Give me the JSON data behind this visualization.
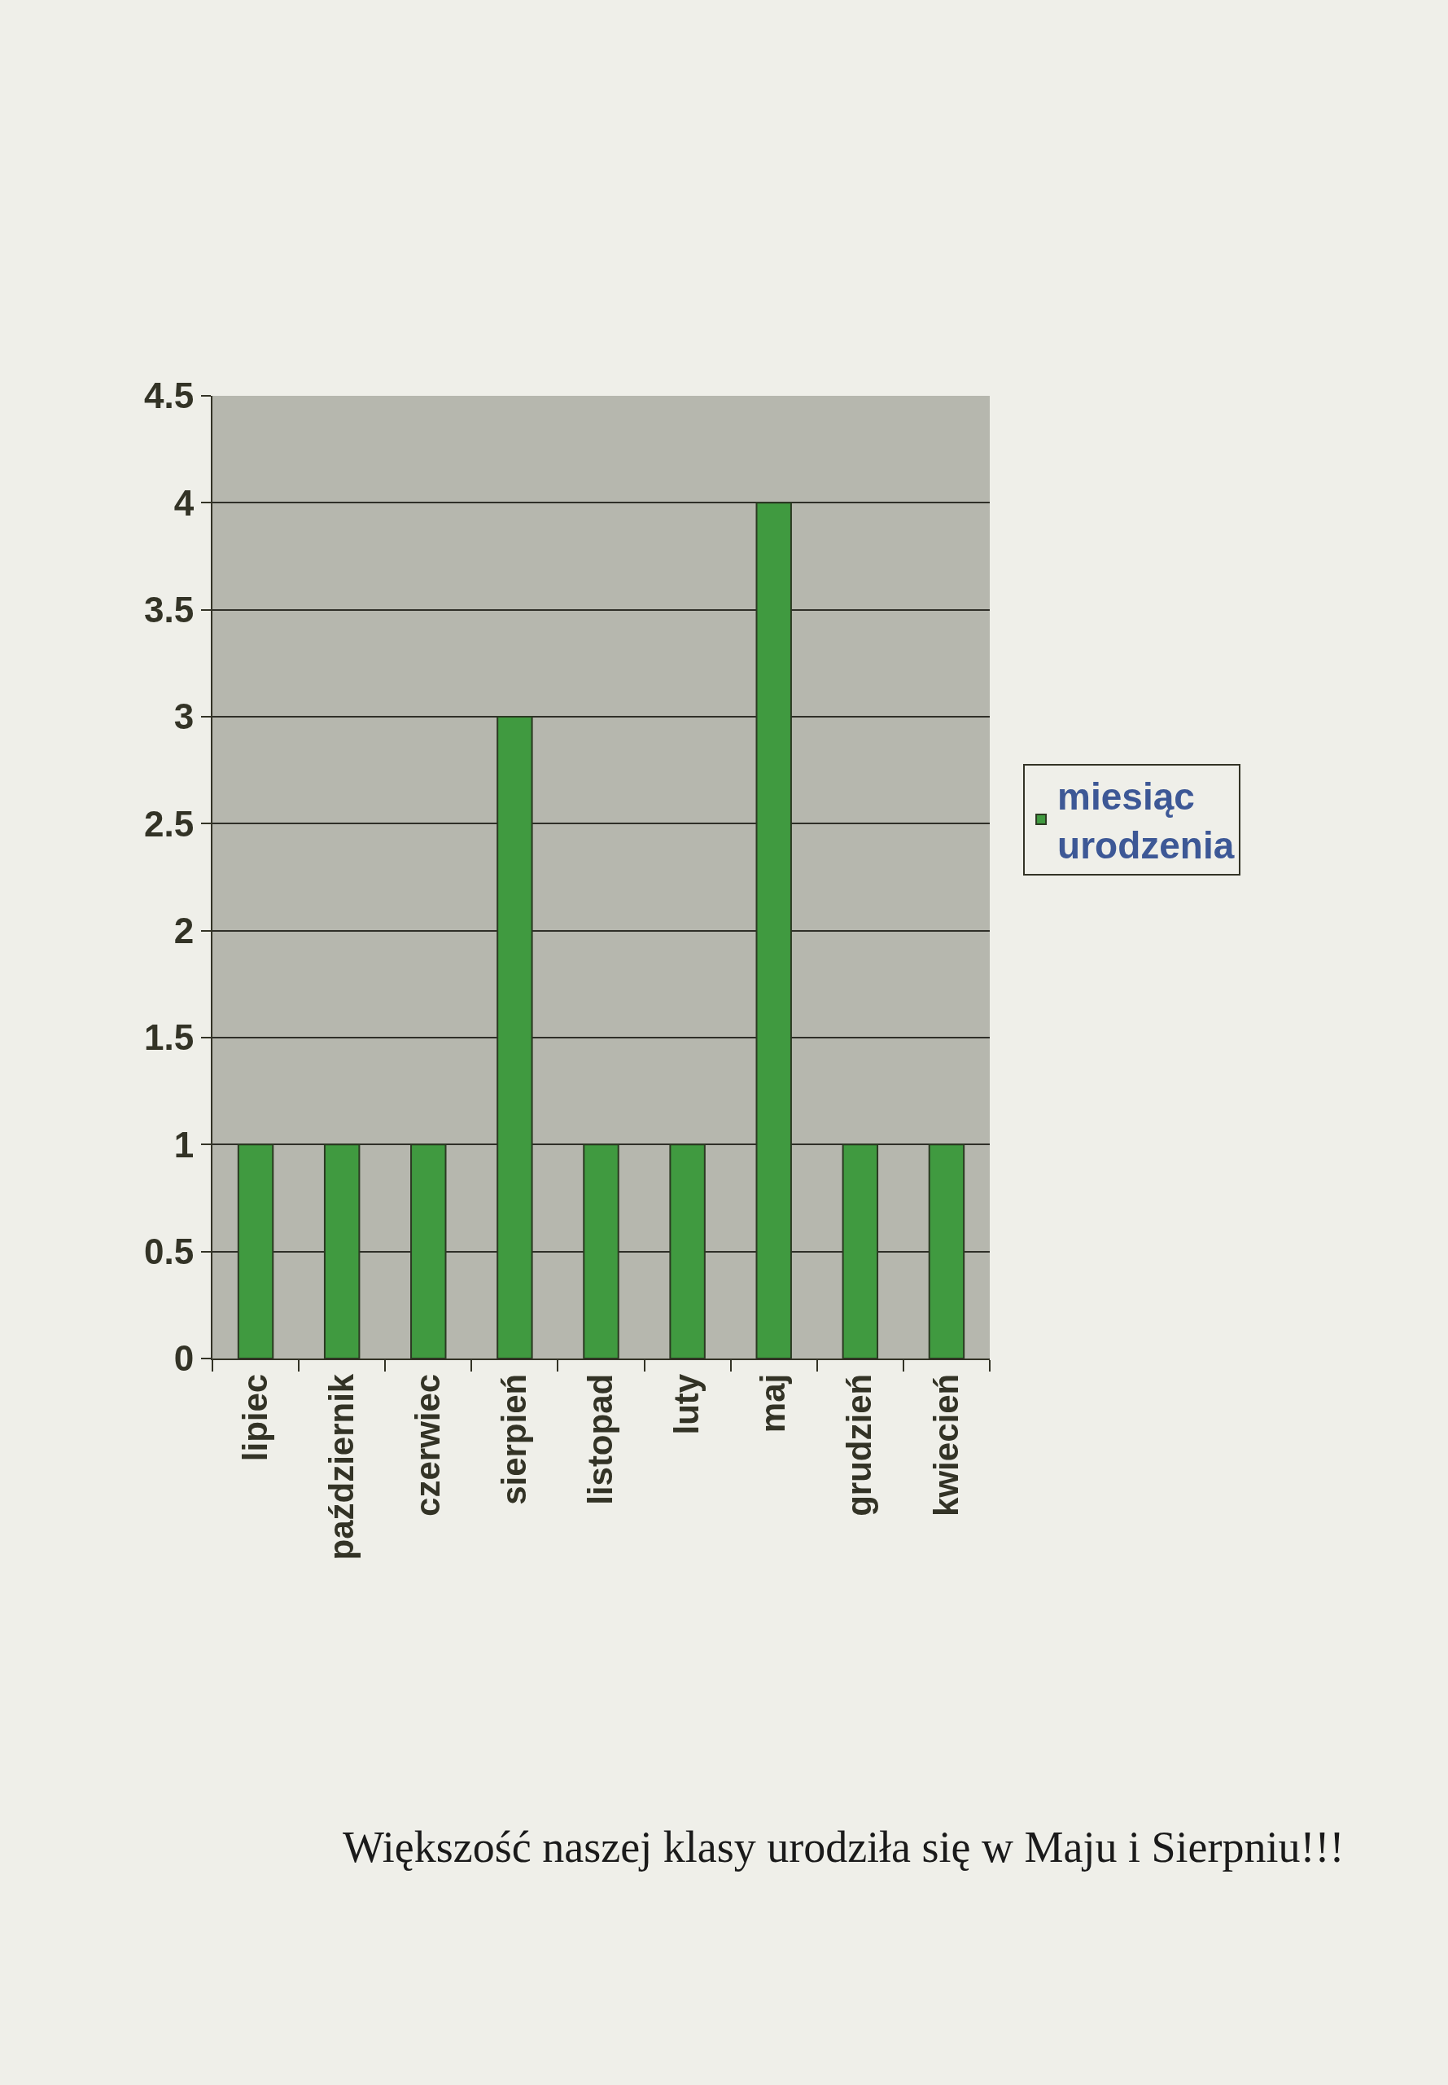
{
  "chart_data": {
    "type": "bar",
    "categories": [
      "lipiec",
      "październik",
      "czerwiec",
      "sierpień",
      "listopad",
      "luty",
      "maj",
      "grudzień",
      "kwiecień"
    ],
    "series": [
      {
        "name": "miesiąc urodzenia",
        "color": "#409a40",
        "values": [
          1,
          1,
          1,
          3,
          1,
          1,
          4,
          1,
          1
        ]
      }
    ],
    "ylim": [
      0,
      4.5
    ],
    "yticks": [
      0,
      0.5,
      1,
      1.5,
      2,
      2.5,
      3,
      3.5,
      4,
      4.5
    ],
    "grid": "y",
    "legend": "right",
    "annotations": [
      "Większość naszej klasy urodziła się w Maju i Sierpniu!!!"
    ]
  }
}
